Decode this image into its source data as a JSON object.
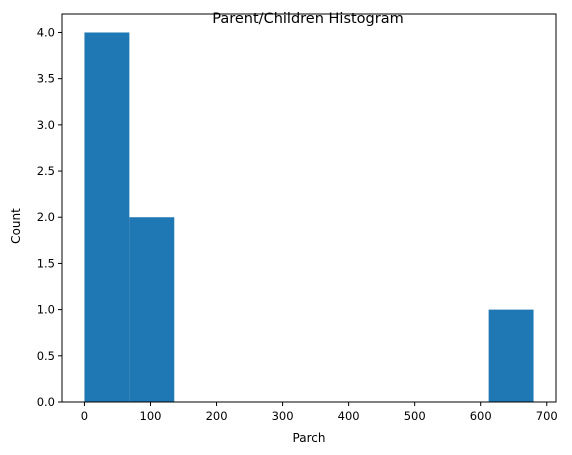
{
  "chart_data": {
    "type": "bar",
    "title": "Parent/Children Histogram",
    "xlabel": "Parch",
    "ylabel": "Count",
    "bins": [
      {
        "start": 0,
        "end": 68,
        "count": 4
      },
      {
        "start": 68,
        "end": 136,
        "count": 2
      },
      {
        "start": 136,
        "end": 204,
        "count": 0
      },
      {
        "start": 204,
        "end": 272,
        "count": 0
      },
      {
        "start": 272,
        "end": 340,
        "count": 0
      },
      {
        "start": 340,
        "end": 408,
        "count": 0
      },
      {
        "start": 408,
        "end": 476,
        "count": 0
      },
      {
        "start": 476,
        "end": 544,
        "count": 0
      },
      {
        "start": 544,
        "end": 612,
        "count": 0
      },
      {
        "start": 612,
        "end": 680,
        "count": 1
      }
    ],
    "xlim": [
      -34,
      714
    ],
    "ylim": [
      0,
      4.2
    ],
    "xticks": [
      0,
      100,
      200,
      300,
      400,
      500,
      600,
      700
    ],
    "xtick_labels": [
      "0",
      "100",
      "200",
      "300",
      "400",
      "500",
      "600",
      "700"
    ],
    "yticks": [
      0,
      0.5,
      1,
      1.5,
      2,
      2.5,
      3,
      3.5,
      4
    ],
    "ytick_labels": [
      "0.0",
      "0.5",
      "1.0",
      "1.5",
      "2.0",
      "2.5",
      "3.0",
      "3.5",
      "4.0"
    ],
    "grid": false,
    "bar_color": "#1f77b4"
  }
}
